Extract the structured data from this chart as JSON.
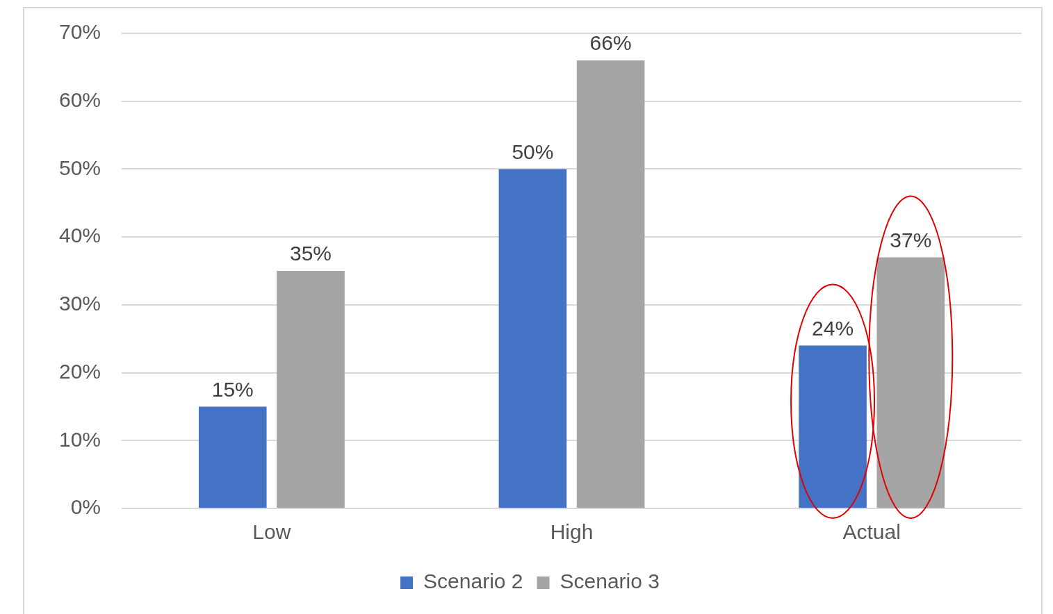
{
  "chart_data": {
    "type": "bar",
    "categories": [
      "Low",
      "High",
      "Actual"
    ],
    "series": [
      {
        "name": "Scenario 2",
        "color": "#4472c4",
        "values": [
          15,
          50,
          24
        ],
        "value_labels": [
          "15%",
          "50%",
          "24%"
        ]
      },
      {
        "name": "Scenario 3",
        "color": "#a5a5a5",
        "values": [
          35,
          66,
          37
        ],
        "value_labels": [
          "35%",
          "66%",
          "37%"
        ]
      }
    ],
    "ylim": [
      0,
      70
    ],
    "yticks": [
      {
        "value": 0,
        "label": "0%"
      },
      {
        "value": 10,
        "label": "10%"
      },
      {
        "value": 20,
        "label": "20%"
      },
      {
        "value": 30,
        "label": "30%"
      },
      {
        "value": 40,
        "label": "40%"
      },
      {
        "value": 50,
        "label": "50%"
      },
      {
        "value": 60,
        "label": "60%"
      },
      {
        "value": 70,
        "label": "70%"
      }
    ],
    "grid": "y",
    "legend": "bottom"
  }
}
